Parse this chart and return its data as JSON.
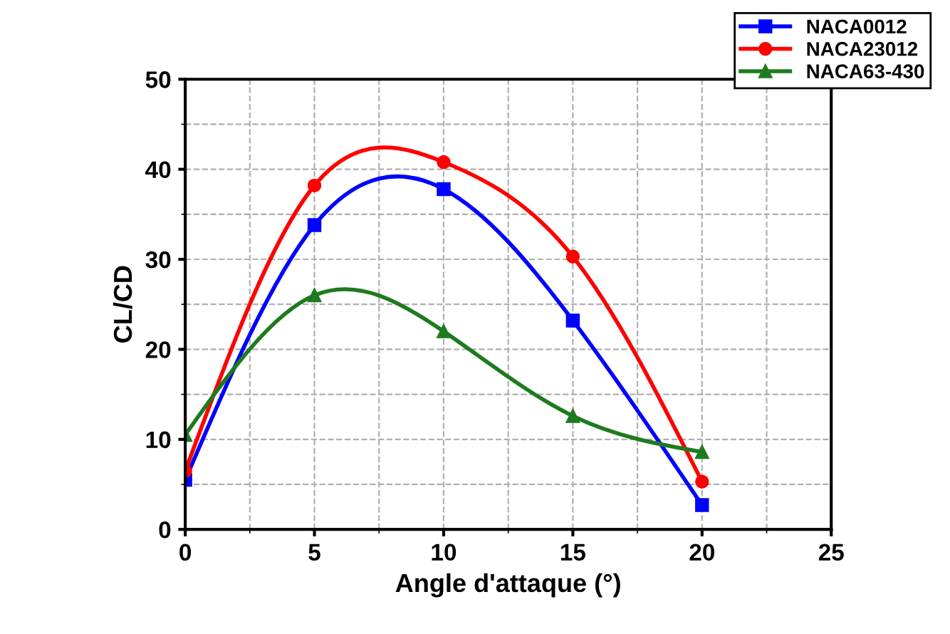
{
  "chart_data": {
    "type": "line",
    "xlabel": "Angle d'attaque (°)",
    "ylabel": "CL/CD",
    "x": [
      0,
      5,
      10,
      15,
      20
    ],
    "series": [
      {
        "name": "NACA0012",
        "color": "#0000ff",
        "marker": "square",
        "values": [
          5.5,
          33.8,
          37.8,
          23.2,
          2.7
        ]
      },
      {
        "name": "NACA23012",
        "color": "#ff0000",
        "marker": "circle",
        "values": [
          6.5,
          38.2,
          40.8,
          30.3,
          5.3
        ]
      },
      {
        "name": "NACA63-430",
        "color": "#1e7a1e",
        "marker": "triangle",
        "values": [
          10.5,
          26.0,
          22.0,
          12.6,
          8.6
        ]
      }
    ],
    "xlim": [
      0,
      25
    ],
    "ylim": [
      0,
      50
    ],
    "xticks": [
      0,
      5,
      10,
      15,
      20,
      25
    ],
    "yticks": [
      0,
      10,
      20,
      30,
      40,
      50
    ],
    "grid": true,
    "legend": "top right",
    "line_style": "solid"
  }
}
